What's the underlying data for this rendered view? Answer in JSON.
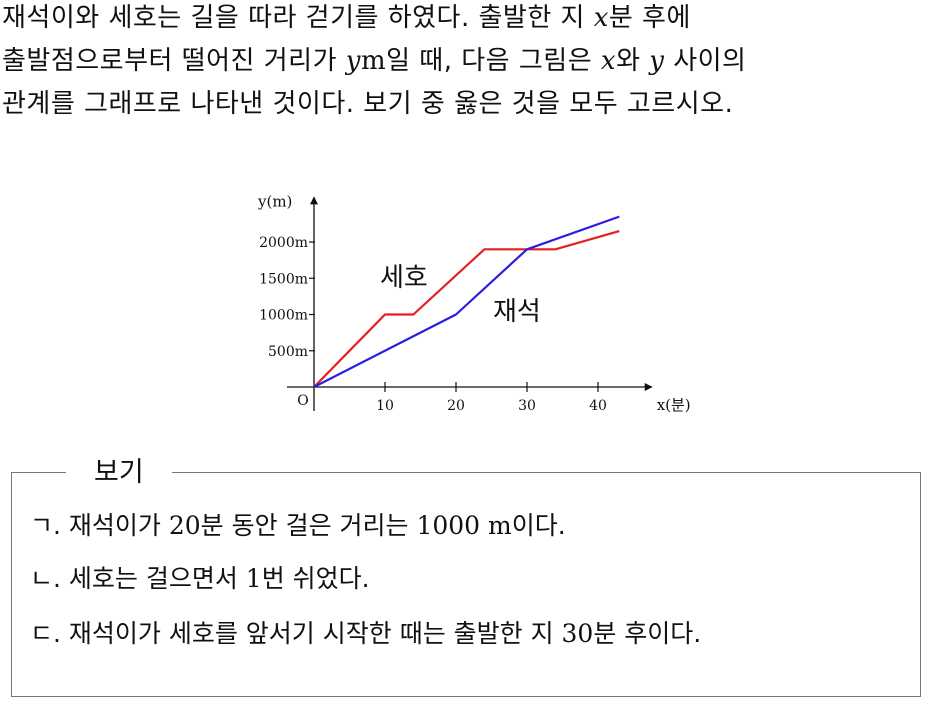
{
  "question": {
    "line1": {
      "a": "재석이와 세호는 길을 따라 걷기를 하였다. 출발한 지 ",
      "x": "x",
      "b": "분 후에"
    },
    "line2": {
      "a": "출발점으로부터 떨어진 거리가 ",
      "y": "y",
      "unit": "m",
      "b": "일 때, 다음 그림은 ",
      "x": "x",
      "c": "와 ",
      "y2": "y",
      "d": " 사이의"
    },
    "line3": "관계를 그래프로 나타낸 것이다. 보기 중 옳은 것을 모두 고르시오."
  },
  "chart_data": {
    "type": "line",
    "xlabel": "x(분)",
    "ylabel": "y(m)",
    "origin_label": "O",
    "xticks": [
      10,
      20,
      30,
      40
    ],
    "xtick_labels": [
      "10",
      "20",
      "30",
      "40"
    ],
    "yticks": [
      500,
      1000,
      1500,
      2000
    ],
    "ytick_labels": [
      "500m",
      "1000m",
      "1500m",
      "2000m"
    ],
    "xlim": [
      0,
      47
    ],
    "ylim": [
      0,
      2450
    ],
    "grid": false,
    "series": [
      {
        "name": "세호",
        "color": "#e61e1e",
        "points": [
          [
            0,
            0
          ],
          [
            10,
            1000
          ],
          [
            14,
            1000
          ],
          [
            24,
            1900
          ],
          [
            34,
            1900
          ],
          [
            43,
            2150
          ]
        ]
      },
      {
        "name": "재석",
        "color": "#2a1ee0",
        "points": [
          [
            0,
            0
          ],
          [
            20,
            1000
          ],
          [
            30,
            1900
          ],
          [
            43,
            2350
          ]
        ]
      }
    ]
  },
  "bogi": {
    "title": "보기",
    "items": [
      {
        "marker": "ㄱ.",
        "a": " 재석이가 ",
        "num": "20",
        "b": "분 동안 걸은 거리는 ",
        "num2": "1000 m",
        "c": "이다."
      },
      {
        "marker": "ㄴ.",
        "a": " 세호는 걸으면서 ",
        "num": "1",
        "b": "번 쉬었다.",
        "num2": "",
        "c": ""
      },
      {
        "marker": "ㄷ.",
        "a": " 재석이가 세호를 앞서기 시작한 때는 출발한 지 ",
        "num": "30",
        "b": "분 후이다.",
        "num2": "",
        "c": ""
      }
    ]
  }
}
